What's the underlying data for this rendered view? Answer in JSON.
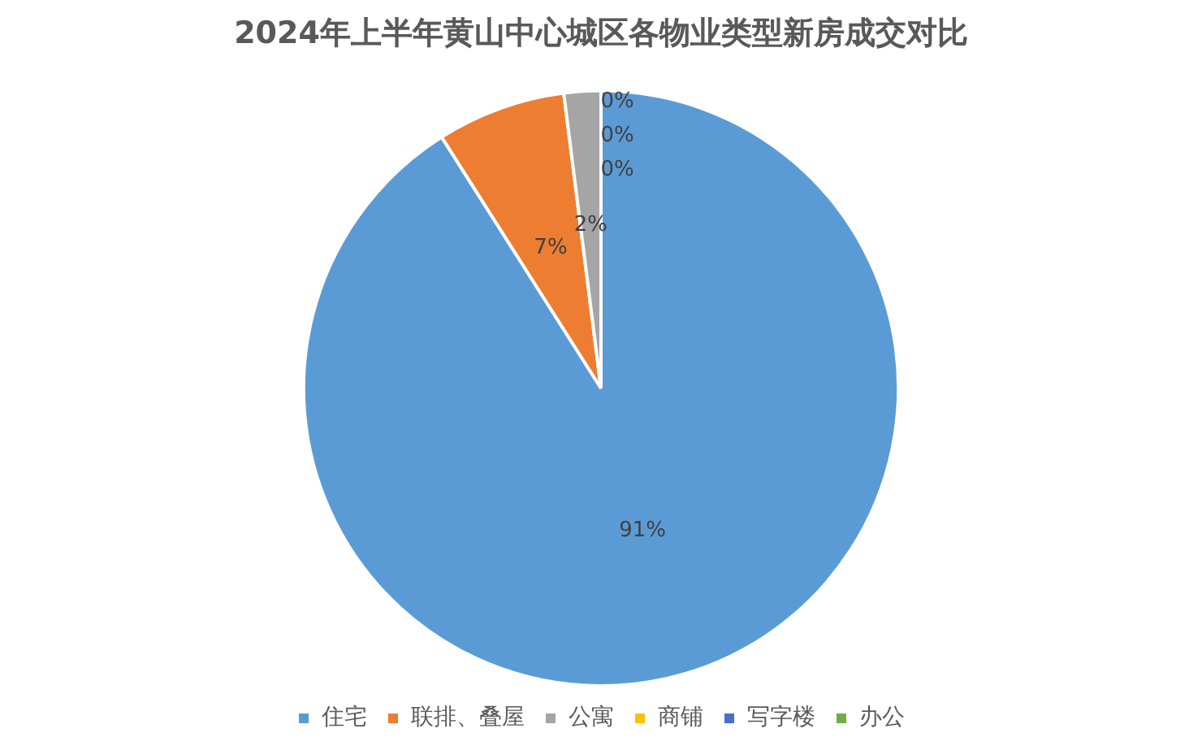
{
  "chart_data": {
    "type": "pie",
    "title": "2024年上半年黄山中心城区各物业类型新房成交对比",
    "categories": [
      "住宅",
      "联排、叠屋",
      "公寓",
      "商铺",
      "写字楼",
      "办公"
    ],
    "values": [
      91,
      7,
      2,
      0,
      0,
      0
    ],
    "colors": [
      "#5b9bd5",
      "#ed7d31",
      "#a5a5a5",
      "#ffc000",
      "#4472c4",
      "#70ad47"
    ],
    "value_labels": [
      "91%",
      "7%",
      "2%",
      "0%",
      "0%",
      "0%"
    ],
    "legend": "bottom"
  }
}
